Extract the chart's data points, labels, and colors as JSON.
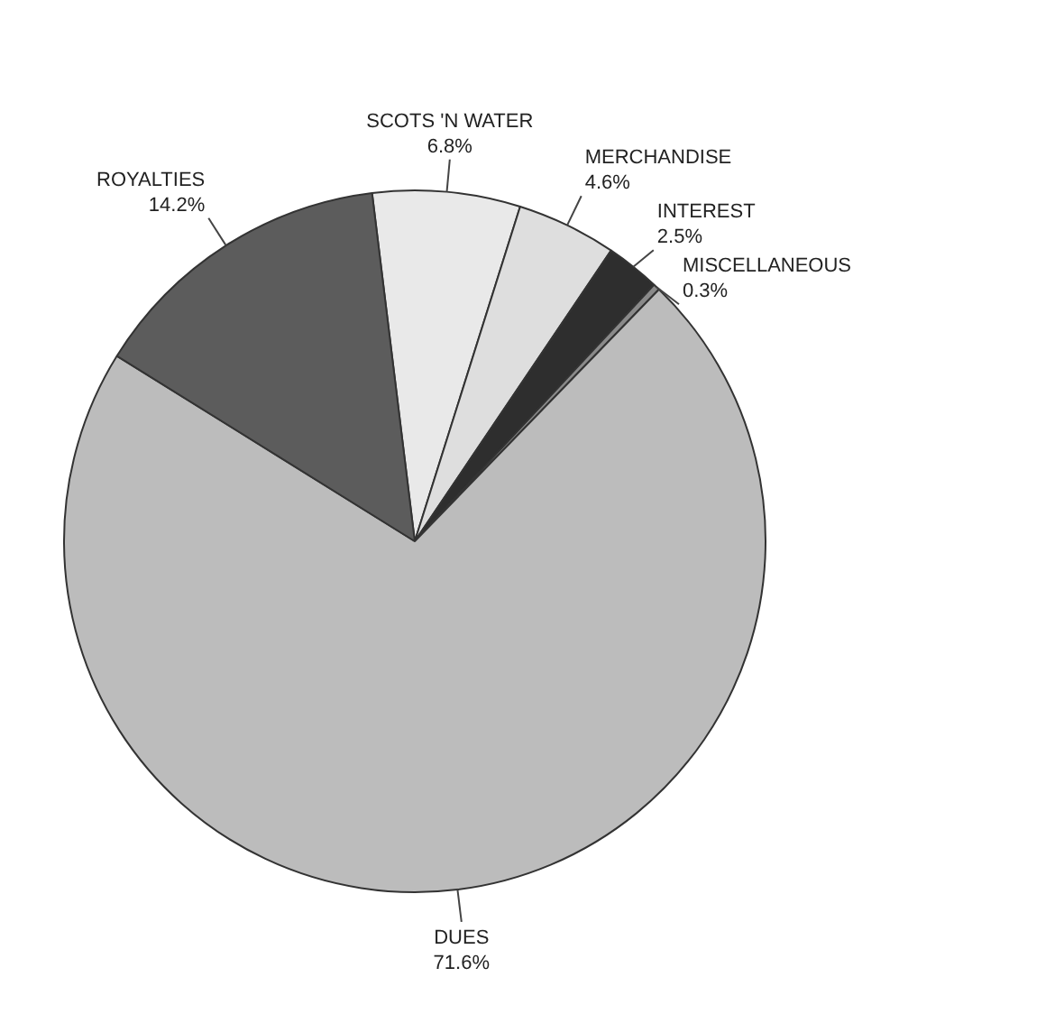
{
  "chart_data": {
    "type": "pie",
    "categories": [
      "SCOTS 'N WATER",
      "MERCHANDISE",
      "INTEREST",
      "MISCELLANEOUS",
      "DUES",
      "ROYALTIES"
    ],
    "values": [
      6.8,
      4.6,
      2.5,
      0.3,
      71.6,
      14.2
    ],
    "value_labels": [
      "6.8%",
      "4.6%",
      "2.5%",
      "0.3%",
      "71.6%",
      "14.2%"
    ],
    "colors": [
      "#e9e9e9",
      "#dedede",
      "#2e2e2e",
      "#8a8a8a",
      "#bcbcbc",
      "#5c5c5c"
    ],
    "legend": false
  }
}
